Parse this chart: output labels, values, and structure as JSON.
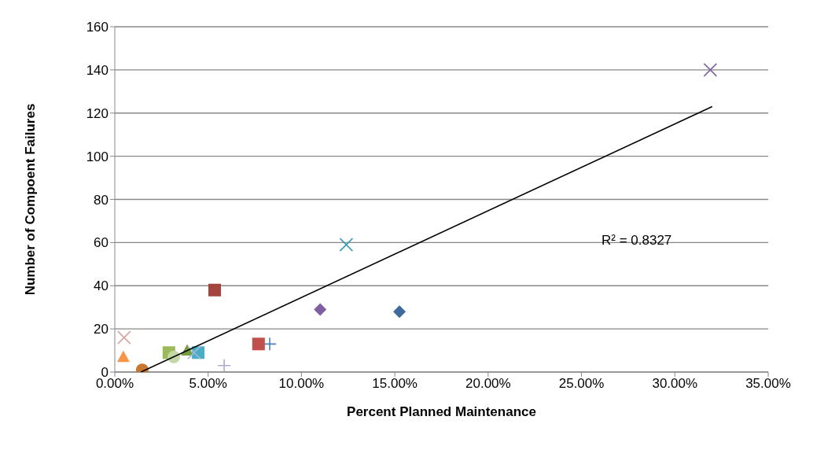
{
  "chart_data": {
    "type": "scatter",
    "xlabel": "Percent Planned Maintenance",
    "ylabel": "Number  of Compoent Failures",
    "xlim": [
      0,
      35
    ],
    "xticks": [
      {
        "value": 0,
        "label": "0.00%"
      },
      {
        "value": 5,
        "label": "5.00%"
      },
      {
        "value": 10,
        "label": "10.00%"
      },
      {
        "value": 15,
        "label": "15.00%"
      },
      {
        "value": 20,
        "label": "20.00%"
      },
      {
        "value": 25,
        "label": "25.00%"
      },
      {
        "value": 30,
        "label": "30.00%"
      },
      {
        "value": 35,
        "label": "35.00%"
      }
    ],
    "ylim": [
      0,
      160
    ],
    "yticks": [
      0,
      20,
      40,
      60,
      80,
      100,
      120,
      140,
      160
    ],
    "grid": "y",
    "legend": false,
    "annotations": [
      "R² = 0.8327"
    ],
    "series": [
      {
        "color": "#7f64a0",
        "marker": "cross",
        "x": [
          31.9
        ],
        "values": [
          140
        ]
      },
      {
        "color": "#3a9bb0",
        "marker": "cross",
        "x": [
          12.4
        ],
        "values": [
          59
        ]
      },
      {
        "color": "#a5433f",
        "marker": "square",
        "x": [
          5.35
        ],
        "values": [
          38
        ]
      },
      {
        "color": "#7f5fa2",
        "marker": "diamond",
        "x": [
          11.0
        ],
        "values": [
          29
        ]
      },
      {
        "color": "#3f6a9e",
        "marker": "diamond",
        "x": [
          15.25
        ],
        "values": [
          28
        ]
      },
      {
        "color": "#4a7fc0",
        "marker": "plus",
        "x": [
          8.3
        ],
        "values": [
          13
        ]
      },
      {
        "color": "#c0504d",
        "marker": "square",
        "x": [
          7.7
        ],
        "values": [
          13
        ]
      },
      {
        "color": "#d8a3a0",
        "marker": "cross",
        "x": [
          0.5
        ],
        "values": [
          16
        ]
      },
      {
        "color": "#f79646",
        "marker": "triangle",
        "x": [
          0.46
        ],
        "values": [
          7
        ]
      },
      {
        "color": "#c8782e",
        "marker": "circle",
        "x": [
          1.47
        ],
        "values": [
          1
        ]
      },
      {
        "color": "#9bbb59",
        "marker": "square",
        "x": [
          2.9
        ],
        "values": [
          9
        ]
      },
      {
        "color": "#c4d7a4",
        "marker": "circle",
        "x": [
          3.16
        ],
        "values": [
          7
        ]
      },
      {
        "color": "#76a040",
        "marker": "triangle",
        "x": [
          3.88
        ],
        "values": [
          10
        ]
      },
      {
        "color": "#4bacc6",
        "marker": "square",
        "x": [
          4.47
        ],
        "values": [
          9
        ]
      },
      {
        "color": "#a6b8d8",
        "marker": "cross",
        "x": [
          4.25
        ],
        "values": [
          9
        ]
      },
      {
        "color": "#b4a7d0",
        "marker": "plus",
        "x": [
          5.86
        ],
        "values": [
          3
        ]
      },
      {
        "type": "line",
        "color": "#000000",
        "marker": "none",
        "x": [
          1.4,
          32
        ],
        "values": [
          0,
          123
        ]
      }
    ]
  }
}
